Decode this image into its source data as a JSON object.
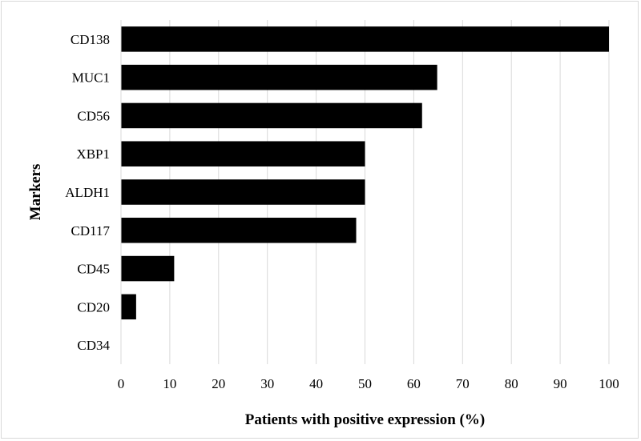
{
  "chart_data": {
    "type": "bar",
    "orientation": "horizontal",
    "categories": [
      "CD138",
      "MUC1",
      "CD56",
      "XBP1",
      "ALDH1",
      "CD117",
      "CD45",
      "CD20",
      "CD34"
    ],
    "values": [
      100,
      64.8,
      61.7,
      50,
      50,
      48.2,
      10.9,
      3.1,
      0
    ],
    "xlabel": "Patients with positive expression (%)",
    "ylabel": "Markers",
    "xlim": [
      0,
      100
    ],
    "xticks": [
      "0",
      "10",
      "20",
      "30",
      "40",
      "50",
      "60",
      "70",
      "80",
      "90",
      "100"
    ],
    "grid": "vertical",
    "bar_color": "#000000",
    "grid_color": "#d9d9d9"
  }
}
